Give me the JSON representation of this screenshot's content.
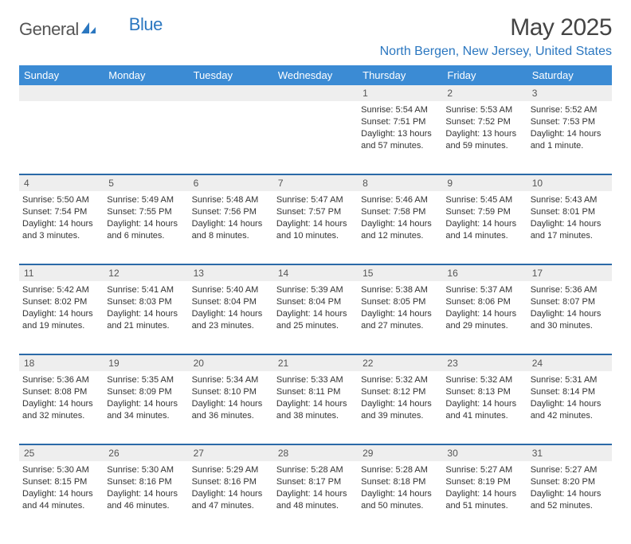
{
  "brand": {
    "part1": "General",
    "part2": "Blue"
  },
  "title": "May 2025",
  "location": "North Bergen, New Jersey, United States",
  "colors": {
    "header_bg": "#3b8bd4",
    "header_text": "#ffffff",
    "rule": "#2b6aa8",
    "daynum_bg": "#eeeeee",
    "text": "#333333",
    "brand_blue": "#2b77c0",
    "brand_gray": "#555555"
  },
  "day_names": [
    "Sunday",
    "Monday",
    "Tuesday",
    "Wednesday",
    "Thursday",
    "Friday",
    "Saturday"
  ],
  "weeks": [
    {
      "nums": [
        "",
        "",
        "",
        "",
        "1",
        "2",
        "3"
      ],
      "cells": [
        null,
        null,
        null,
        null,
        {
          "sr": "5:54 AM",
          "ss": "7:51 PM",
          "dl": "13 hours and 57 minutes."
        },
        {
          "sr": "5:53 AM",
          "ss": "7:52 PM",
          "dl": "13 hours and 59 minutes."
        },
        {
          "sr": "5:52 AM",
          "ss": "7:53 PM",
          "dl": "14 hours and 1 minute."
        }
      ]
    },
    {
      "nums": [
        "4",
        "5",
        "6",
        "7",
        "8",
        "9",
        "10"
      ],
      "cells": [
        {
          "sr": "5:50 AM",
          "ss": "7:54 PM",
          "dl": "14 hours and 3 minutes."
        },
        {
          "sr": "5:49 AM",
          "ss": "7:55 PM",
          "dl": "14 hours and 6 minutes."
        },
        {
          "sr": "5:48 AM",
          "ss": "7:56 PM",
          "dl": "14 hours and 8 minutes."
        },
        {
          "sr": "5:47 AM",
          "ss": "7:57 PM",
          "dl": "14 hours and 10 minutes."
        },
        {
          "sr": "5:46 AM",
          "ss": "7:58 PM",
          "dl": "14 hours and 12 minutes."
        },
        {
          "sr": "5:45 AM",
          "ss": "7:59 PM",
          "dl": "14 hours and 14 minutes."
        },
        {
          "sr": "5:43 AM",
          "ss": "8:01 PM",
          "dl": "14 hours and 17 minutes."
        }
      ]
    },
    {
      "nums": [
        "11",
        "12",
        "13",
        "14",
        "15",
        "16",
        "17"
      ],
      "cells": [
        {
          "sr": "5:42 AM",
          "ss": "8:02 PM",
          "dl": "14 hours and 19 minutes."
        },
        {
          "sr": "5:41 AM",
          "ss": "8:03 PM",
          "dl": "14 hours and 21 minutes."
        },
        {
          "sr": "5:40 AM",
          "ss": "8:04 PM",
          "dl": "14 hours and 23 minutes."
        },
        {
          "sr": "5:39 AM",
          "ss": "8:04 PM",
          "dl": "14 hours and 25 minutes."
        },
        {
          "sr": "5:38 AM",
          "ss": "8:05 PM",
          "dl": "14 hours and 27 minutes."
        },
        {
          "sr": "5:37 AM",
          "ss": "8:06 PM",
          "dl": "14 hours and 29 minutes."
        },
        {
          "sr": "5:36 AM",
          "ss": "8:07 PM",
          "dl": "14 hours and 30 minutes."
        }
      ]
    },
    {
      "nums": [
        "18",
        "19",
        "20",
        "21",
        "22",
        "23",
        "24"
      ],
      "cells": [
        {
          "sr": "5:36 AM",
          "ss": "8:08 PM",
          "dl": "14 hours and 32 minutes."
        },
        {
          "sr": "5:35 AM",
          "ss": "8:09 PM",
          "dl": "14 hours and 34 minutes."
        },
        {
          "sr": "5:34 AM",
          "ss": "8:10 PM",
          "dl": "14 hours and 36 minutes."
        },
        {
          "sr": "5:33 AM",
          "ss": "8:11 PM",
          "dl": "14 hours and 38 minutes."
        },
        {
          "sr": "5:32 AM",
          "ss": "8:12 PM",
          "dl": "14 hours and 39 minutes."
        },
        {
          "sr": "5:32 AM",
          "ss": "8:13 PM",
          "dl": "14 hours and 41 minutes."
        },
        {
          "sr": "5:31 AM",
          "ss": "8:14 PM",
          "dl": "14 hours and 42 minutes."
        }
      ]
    },
    {
      "nums": [
        "25",
        "26",
        "27",
        "28",
        "29",
        "30",
        "31"
      ],
      "cells": [
        {
          "sr": "5:30 AM",
          "ss": "8:15 PM",
          "dl": "14 hours and 44 minutes."
        },
        {
          "sr": "5:30 AM",
          "ss": "8:16 PM",
          "dl": "14 hours and 46 minutes."
        },
        {
          "sr": "5:29 AM",
          "ss": "8:16 PM",
          "dl": "14 hours and 47 minutes."
        },
        {
          "sr": "5:28 AM",
          "ss": "8:17 PM",
          "dl": "14 hours and 48 minutes."
        },
        {
          "sr": "5:28 AM",
          "ss": "8:18 PM",
          "dl": "14 hours and 50 minutes."
        },
        {
          "sr": "5:27 AM",
          "ss": "8:19 PM",
          "dl": "14 hours and 51 minutes."
        },
        {
          "sr": "5:27 AM",
          "ss": "8:20 PM",
          "dl": "14 hours and 52 minutes."
        }
      ]
    }
  ],
  "labels": {
    "sunrise": "Sunrise: ",
    "sunset": "Sunset: ",
    "daylight": "Daylight: "
  }
}
